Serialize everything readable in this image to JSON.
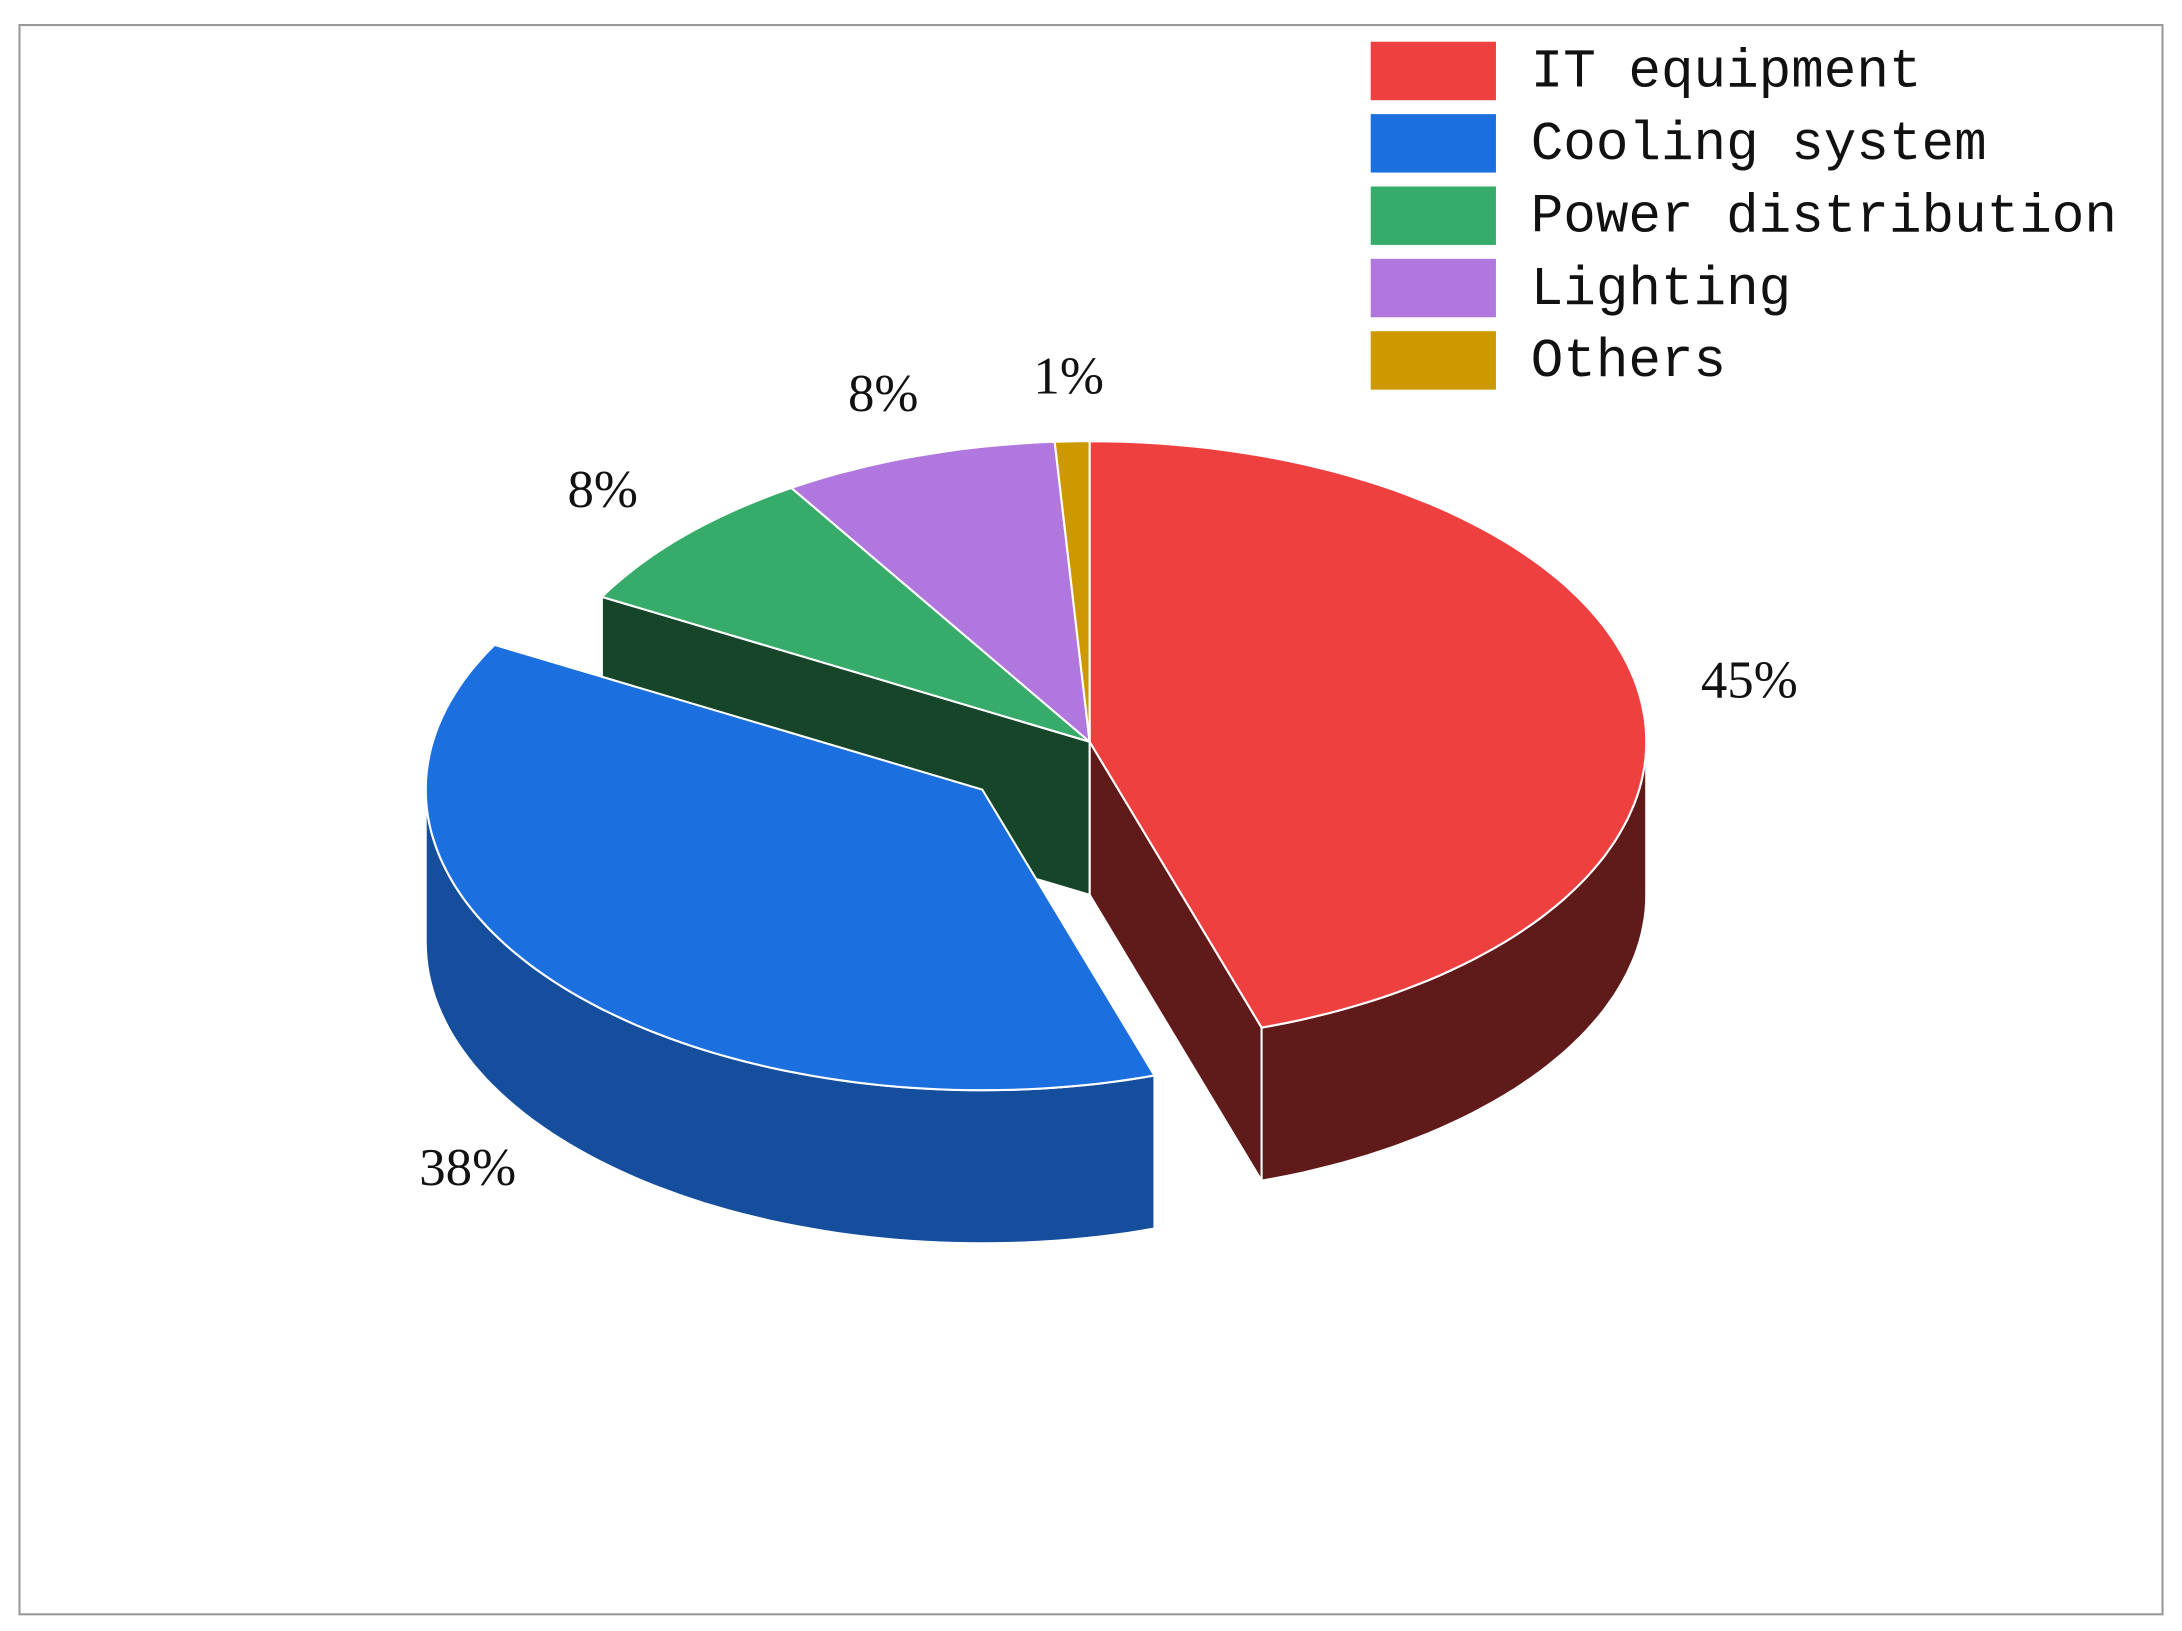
{
  "chart_data": {
    "type": "pie3d",
    "categories": [
      "IT equipment",
      "Cooling system",
      "Power distribution",
      "Lighting",
      "Others"
    ],
    "values": [
      45,
      38,
      8,
      8,
      1
    ],
    "value_labels": [
      "45%",
      "38%",
      "8%",
      "8%",
      "1%"
    ],
    "colors": [
      "#ef4040",
      "#1c6fdf",
      "#37ac6a",
      "#b078de",
      "#cc9900"
    ],
    "exploded": [
      false,
      true,
      false,
      false,
      false
    ],
    "legend": "upper right"
  }
}
